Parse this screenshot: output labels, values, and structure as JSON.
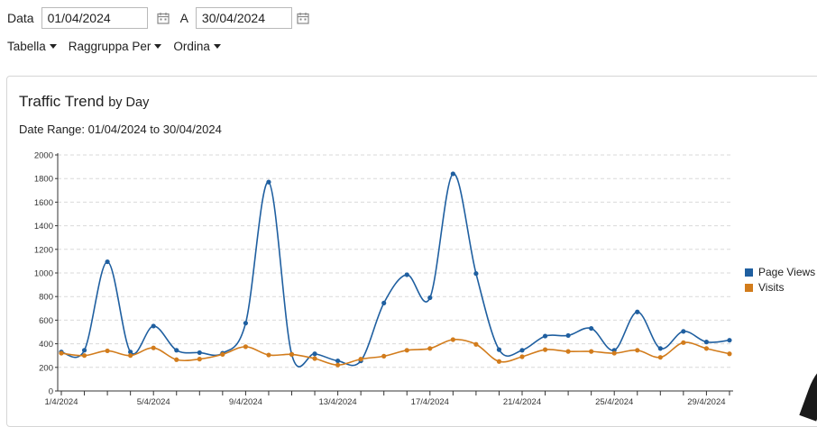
{
  "filters": {
    "date_label": "Data",
    "from_value": "01/04/2024",
    "to_label": "A",
    "to_value": "30/04/2024"
  },
  "menus": {
    "table": "Tabella",
    "group_by": "Raggruppa Per",
    "sort": "Ordina"
  },
  "chart": {
    "title": "Traffic Trend",
    "title_suffix": "by Day",
    "range_text": "Date Range: 01/04/2024 to 30/04/2024"
  },
  "colors": {
    "page_views": "#1f5fa0",
    "visits": "#d27c1c"
  },
  "chart_data": {
    "type": "line",
    "title": "Traffic Trend by Day",
    "subtitle": "Date Range: 01/04/2024 to 30/04/2024",
    "x": [
      "1/4/2024",
      "2/4/2024",
      "3/4/2024",
      "4/4/2024",
      "5/4/2024",
      "6/4/2024",
      "7/4/2024",
      "8/4/2024",
      "9/4/2024",
      "10/4/2024",
      "11/4/2024",
      "12/4/2024",
      "13/4/2024",
      "14/4/2024",
      "15/4/2024",
      "16/4/2024",
      "17/4/2024",
      "18/4/2024",
      "19/4/2024",
      "20/4/2024",
      "21/4/2024",
      "22/4/2024",
      "23/4/2024",
      "24/4/2024",
      "25/4/2024",
      "26/4/2024",
      "27/4/2024",
      "28/4/2024",
      "29/4/2024",
      "30/4/2024"
    ],
    "x_tick_labels": [
      "1/4/2024",
      "5/4/2024",
      "9/4/2024",
      "13/4/2024",
      "17/4/2024",
      "21/4/2024",
      "25/4/2024",
      "29/4/2024"
    ],
    "ylim": [
      0,
      2000
    ],
    "y_ticks": [
      0,
      200,
      400,
      600,
      800,
      1000,
      1200,
      1400,
      1600,
      1800,
      2000
    ],
    "grid": "horizontal dashed",
    "legend_position": "right",
    "series": [
      {
        "name": "Page Views",
        "values": [
          330,
          345,
          1095,
          330,
          550,
          345,
          325,
          320,
          575,
          1770,
          310,
          315,
          255,
          255,
          745,
          985,
          790,
          1840,
          995,
          350,
          345,
          465,
          470,
          530,
          345,
          670,
          360,
          505,
          415,
          430
        ]
      },
      {
        "name": "Visits",
        "values": [
          320,
          300,
          340,
          300,
          365,
          265,
          270,
          310,
          375,
          305,
          310,
          275,
          220,
          270,
          295,
          345,
          360,
          435,
          395,
          250,
          290,
          350,
          335,
          335,
          320,
          345,
          285,
          410,
          360,
          315
        ]
      }
    ]
  }
}
